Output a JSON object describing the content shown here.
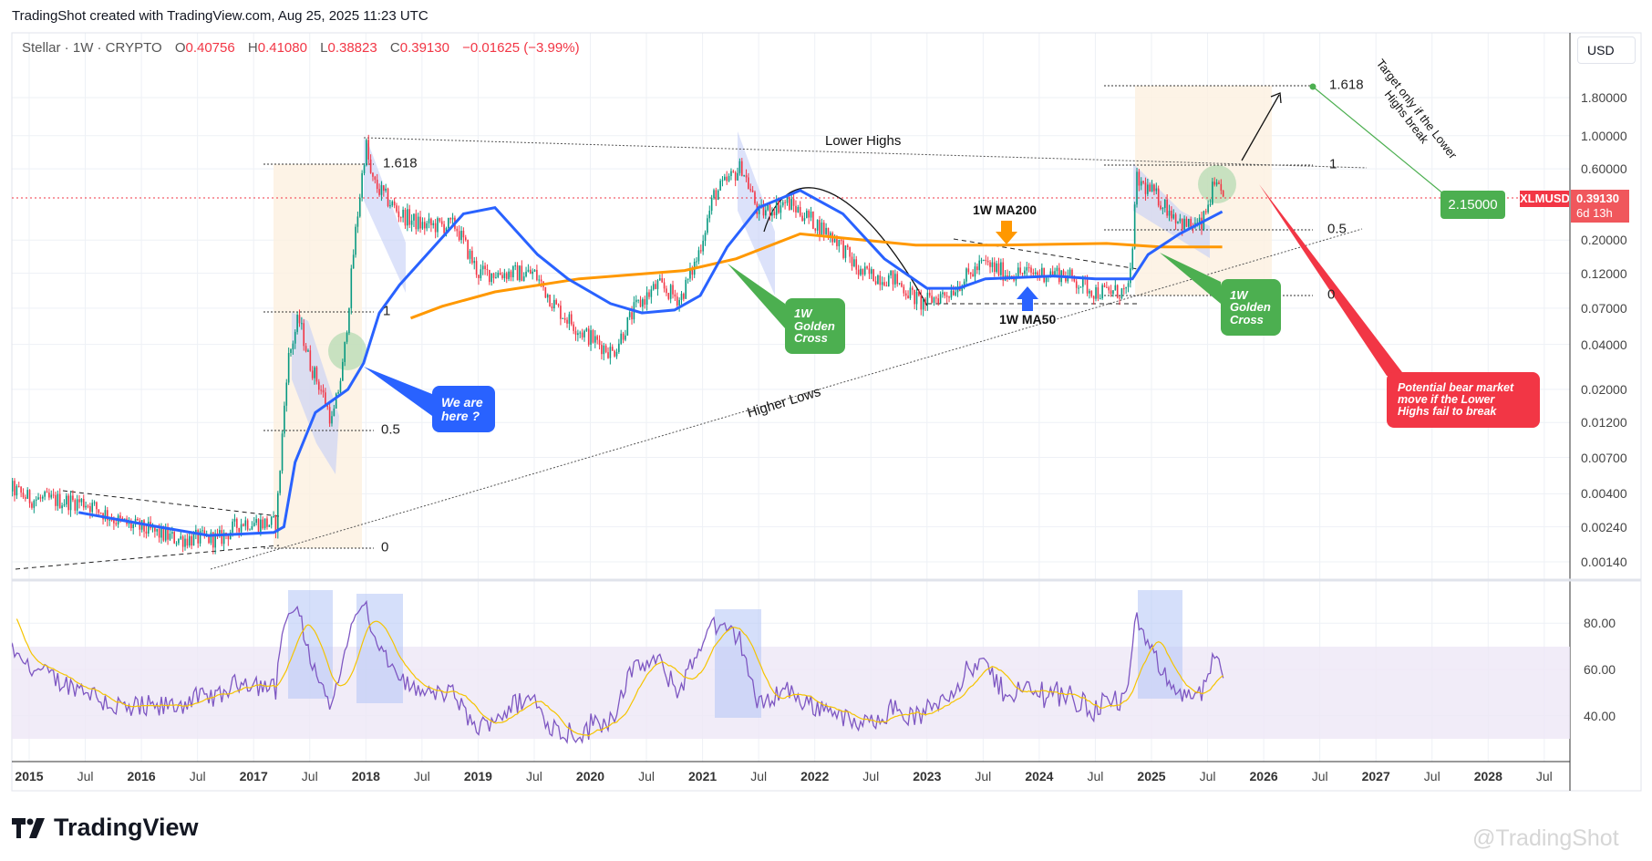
{
  "header": {
    "credit": "TradingShot created with TradingView.com, Aug 25, 2025 11:23 UTC",
    "symbol": "Stellar · 1W · CRYPTO",
    "o_label": "O",
    "o": "0.40756",
    "h_label": "H",
    "h": "0.41080",
    "l_label": "L",
    "l": "0.38823",
    "c_label": "C",
    "c": "0.39130",
    "change": "−0.01625 (−3.99%)"
  },
  "price_axis": {
    "currency": "USD",
    "ticker_label": "XLMUSD",
    "last_price": "0.39130",
    "countdown": "6d 13h"
  },
  "footer": {
    "brand": "TradingView",
    "watermark": "@TradingShot"
  },
  "annotations": {
    "lower_highs": "Lower Highs",
    "higher_lows": "Higher Lows",
    "ma200": "1W MA200",
    "ma50": "1W MA50",
    "golden_cross_1": "1W Golden Cross",
    "golden_cross_2": "1W Golden Cross",
    "we_are_here": "We are here ?",
    "bear_note": "Potential bear market move if the Lower Highs fail to break",
    "target_note": "Target only if the Lower Highs break",
    "target_price": "2.15000",
    "fib_2017": [
      "1.618",
      "1",
      "0.5",
      "0"
    ],
    "fib_2025": [
      "1.618",
      "1",
      "0.5",
      "0"
    ]
  },
  "colors": {
    "up": "#089981",
    "down": "#f23645",
    "ma50": "#2962ff",
    "ma200": "#ff9800",
    "rsi": "#7e57c2",
    "rsi_ma": "#f5c400",
    "green_box": "#4caf50",
    "blue_box": "#2962ff",
    "red_box": "#f23645"
  },
  "chart_data": {
    "type": "candlestick",
    "title": "Stellar · 1W · CRYPTO",
    "yscale": "log",
    "y_ticks": [
      "1.80000",
      "1.00000",
      "0.60000",
      "0.20000",
      "0.12000",
      "0.07000",
      "0.04000",
      "0.02000",
      "0.01200",
      "0.00700",
      "0.00400",
      "0.00240",
      "0.00140"
    ],
    "x_ticks": [
      {
        "label": "2015",
        "year": 2015,
        "bold": true
      },
      {
        "label": "Jul",
        "year": 2015.5,
        "bold": false
      },
      {
        "label": "2016",
        "year": 2016,
        "bold": true
      },
      {
        "label": "Jul",
        "year": 2016.5,
        "bold": false
      },
      {
        "label": "2017",
        "year": 2017,
        "bold": true
      },
      {
        "label": "Jul",
        "year": 2017.5,
        "bold": false
      },
      {
        "label": "2018",
        "year": 2018,
        "bold": true
      },
      {
        "label": "Jul",
        "year": 2018.5,
        "bold": false
      },
      {
        "label": "2019",
        "year": 2019,
        "bold": true
      },
      {
        "label": "Jul",
        "year": 2019.5,
        "bold": false
      },
      {
        "label": "2020",
        "year": 2020,
        "bold": true
      },
      {
        "label": "Jul",
        "year": 2020.5,
        "bold": false
      },
      {
        "label": "2021",
        "year": 2021,
        "bold": true
      },
      {
        "label": "Jul",
        "year": 2021.5,
        "bold": false
      },
      {
        "label": "2022",
        "year": 2022,
        "bold": true
      },
      {
        "label": "Jul",
        "year": 2022.5,
        "bold": false
      },
      {
        "label": "2023",
        "year": 2023,
        "bold": true
      },
      {
        "label": "Jul",
        "year": 2023.5,
        "bold": false
      },
      {
        "label": "2024",
        "year": 2024,
        "bold": true
      },
      {
        "label": "Jul",
        "year": 2024.5,
        "bold": false
      },
      {
        "label": "2025",
        "year": 2025,
        "bold": true
      },
      {
        "label": "Jul",
        "year": 2025.5,
        "bold": false
      },
      {
        "label": "2026",
        "year": 2026,
        "bold": true
      },
      {
        "label": "Jul",
        "year": 2026.5,
        "bold": false
      },
      {
        "label": "2027",
        "year": 2027,
        "bold": true
      },
      {
        "label": "Jul",
        "year": 2027.5,
        "bold": false
      },
      {
        "label": "2028",
        "year": 2028,
        "bold": true
      },
      {
        "label": "Jul",
        "year": 2028.5,
        "bold": false
      }
    ],
    "price_path": [
      [
        2014.62,
        0.0015
      ],
      [
        2014.7,
        0.008
      ],
      [
        2014.8,
        0.0045
      ],
      [
        2015.0,
        0.0037
      ],
      [
        2015.5,
        0.0035
      ],
      [
        2015.8,
        0.0026
      ],
      [
        2016.3,
        0.002
      ],
      [
        2016.7,
        0.002
      ],
      [
        2016.9,
        0.0026
      ],
      [
        2017.2,
        0.0025
      ],
      [
        2017.3,
        0.03
      ],
      [
        2017.4,
        0.06
      ],
      [
        2017.5,
        0.03
      ],
      [
        2017.6,
        0.02
      ],
      [
        2017.7,
        0.012
      ],
      [
        2017.8,
        0.03
      ],
      [
        2017.9,
        0.2
      ],
      [
        2018.0,
        0.9
      ],
      [
        2018.05,
        0.5
      ],
      [
        2018.3,
        0.3
      ],
      [
        2018.5,
        0.25
      ],
      [
        2018.8,
        0.25
      ],
      [
        2019.0,
        0.12
      ],
      [
        2019.3,
        0.12
      ],
      [
        2019.5,
        0.12
      ],
      [
        2019.7,
        0.07
      ],
      [
        2019.9,
        0.05
      ],
      [
        2020.2,
        0.035
      ],
      [
        2020.4,
        0.07
      ],
      [
        2020.6,
        0.1
      ],
      [
        2020.8,
        0.08
      ],
      [
        2020.95,
        0.15
      ],
      [
        2021.1,
        0.4
      ],
      [
        2021.35,
        0.62
      ],
      [
        2021.5,
        0.3
      ],
      [
        2021.75,
        0.36
      ],
      [
        2021.95,
        0.28
      ],
      [
        2022.2,
        0.2
      ],
      [
        2022.4,
        0.12
      ],
      [
        2022.7,
        0.11
      ],
      [
        2022.95,
        0.075
      ],
      [
        2023.2,
        0.09
      ],
      [
        2023.5,
        0.14
      ],
      [
        2023.7,
        0.12
      ],
      [
        2024.0,
        0.12
      ],
      [
        2024.2,
        0.12
      ],
      [
        2024.5,
        0.09
      ],
      [
        2024.8,
        0.09
      ],
      [
        2024.87,
        0.5
      ],
      [
        2025.0,
        0.42
      ],
      [
        2025.3,
        0.25
      ],
      [
        2025.45,
        0.25
      ],
      [
        2025.55,
        0.45
      ],
      [
        2025.65,
        0.3913
      ]
    ],
    "ma50": [
      [
        2015.44,
        0.003
      ],
      [
        2016.15,
        0.0024
      ],
      [
        2016.6,
        0.0021
      ],
      [
        2017.18,
        0.0022
      ],
      [
        2017.27,
        0.0024
      ],
      [
        2017.37,
        0.0065
      ],
      [
        2017.55,
        0.014
      ],
      [
        2017.84,
        0.02
      ],
      [
        2017.98,
        0.03
      ],
      [
        2018.12,
        0.065
      ],
      [
        2018.3,
        0.1
      ],
      [
        2018.87,
        0.3
      ],
      [
        2019.15,
        0.33
      ],
      [
        2019.53,
        0.16
      ],
      [
        2019.8,
        0.11
      ],
      [
        2020.18,
        0.075
      ],
      [
        2020.46,
        0.065
      ],
      [
        2020.75,
        0.068
      ],
      [
        2020.98,
        0.085
      ],
      [
        2021.22,
        0.18
      ],
      [
        2021.5,
        0.33
      ],
      [
        2021.87,
        0.43
      ],
      [
        2022.25,
        0.3
      ],
      [
        2022.62,
        0.15
      ],
      [
        2023.0,
        0.095
      ],
      [
        2023.28,
        0.095
      ],
      [
        2023.52,
        0.11
      ],
      [
        2024.13,
        0.115
      ],
      [
        2024.5,
        0.11
      ],
      [
        2024.83,
        0.11
      ],
      [
        2024.97,
        0.16
      ],
      [
        2025.25,
        0.22
      ],
      [
        2025.63,
        0.31
      ]
    ],
    "ma200": [
      [
        2018.4,
        0.06
      ],
      [
        2018.68,
        0.072
      ],
      [
        2019.15,
        0.09
      ],
      [
        2019.9,
        0.11
      ],
      [
        2020.84,
        0.125
      ],
      [
        2021.3,
        0.15
      ],
      [
        2021.87,
        0.22
      ],
      [
        2022.44,
        0.2
      ],
      [
        2022.9,
        0.185
      ],
      [
        2023.66,
        0.185
      ],
      [
        2024.6,
        0.19
      ],
      [
        2025.07,
        0.18
      ],
      [
        2025.63,
        0.18
      ]
    ],
    "rsi": {
      "ticks": [
        "80.00",
        "60.00",
        "40.00"
      ],
      "band": [
        30,
        70
      ],
      "ylim": [
        20,
        100
      ]
    }
  }
}
